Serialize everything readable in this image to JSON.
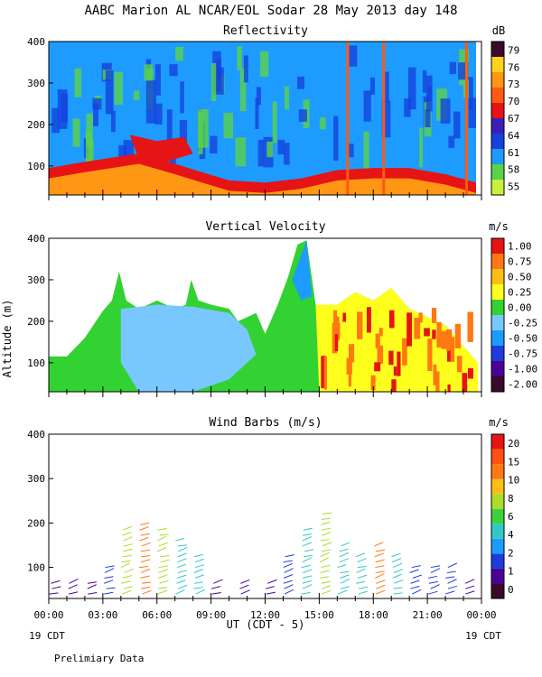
{
  "header": {
    "title": "AABC Marion AL NCAR/EOL Sodar  28 May 2013 day 148"
  },
  "footer": {
    "x_axis_label": "UT  (CDT - 5)",
    "left_date": "19 CDT",
    "right_date": "19 CDT",
    "note": "Prelimiary Data"
  },
  "colors": {
    "reflectivity_scale": [
      "#c8f03c",
      "#5ad24a",
      "#1e9bff",
      "#1444dc",
      "#3c1eb4",
      "#e61414",
      "#ff5a14",
      "#ff9614",
      "#ffd21e",
      "#3a0a28"
    ],
    "velocity_scale": [
      "#3a0a28",
      "#4b0096",
      "#1e3cdc",
      "#1e9bff",
      "#78c8ff",
      "#32d232",
      "#ffff1e",
      "#ffbe14",
      "#ff7814",
      "#e61414"
    ],
    "wind_scale": [
      "#3a0a28",
      "#4b0096",
      "#1e3cdc",
      "#1e9bff",
      "#32c8c8",
      "#3cd23c",
      "#aadc28",
      "#ffbe14",
      "#ff7814",
      "#ff5014",
      "#e61414"
    ]
  },
  "chart_data": [
    {
      "type": "heatmap",
      "title": "Reflectivity",
      "colorbar_unit": "dB",
      "colorbar_ticks": [
        "55",
        "58",
        "61",
        "64",
        "67",
        "70",
        "73",
        "76",
        "79"
      ],
      "x_ticks": [
        "00:00",
        "03:00",
        "06:00",
        "09:00",
        "12:00",
        "15:00",
        "18:00",
        "21:00",
        "00:00"
      ],
      "y_ticks": [
        "100",
        "200",
        "300",
        "400"
      ],
      "ylim": [
        30,
        400
      ],
      "xlim_hours": [
        0,
        24
      ],
      "surface_layer": [
        {
          "x": 0,
          "y": 95
        },
        {
          "x": 2,
          "y": 110
        },
        {
          "x": 3.5,
          "y": 120
        },
        {
          "x": 5,
          "y": 130
        },
        {
          "x": 7,
          "y": 105
        },
        {
          "x": 8.5,
          "y": 85
        },
        {
          "x": 10,
          "y": 65
        },
        {
          "x": 12,
          "y": 60
        },
        {
          "x": 14,
          "y": 70
        },
        {
          "x": 16,
          "y": 90
        },
        {
          "x": 18,
          "y": 95
        },
        {
          "x": 20,
          "y": 95
        },
        {
          "x": 22,
          "y": 80
        },
        {
          "x": 23.7,
          "y": 60
        }
      ],
      "high_echo_region": [
        {
          "x": 4.5,
          "y": 175
        },
        {
          "x": 6,
          "y": 160
        },
        {
          "x": 7.5,
          "y": 170
        },
        {
          "x": 8,
          "y": 130
        },
        {
          "x": 6.5,
          "y": 110
        },
        {
          "x": 5,
          "y": 115
        }
      ]
    },
    {
      "type": "heatmap",
      "title": "Vertical Velocity",
      "ylabel": "Altitude (m)",
      "colorbar_unit": "m/s",
      "colorbar_ticks": [
        "-2.00",
        "-1.00",
        "-0.75",
        "-0.50",
        "-0.25",
        "0.00",
        "0.25",
        "0.50",
        "0.75",
        "1.00"
      ],
      "x_ticks": [
        "00:00",
        "03:00",
        "06:00",
        "09:00",
        "12:00",
        "15:00",
        "18:00",
        "21:00",
        "00:00"
      ],
      "y_ticks": [
        "100",
        "200",
        "300",
        "400"
      ],
      "ylim": [
        30,
        400
      ],
      "xlim_hours": [
        0,
        24
      ],
      "data_top_boundary": [
        {
          "x": 0,
          "y": 115
        },
        {
          "x": 1,
          "y": 115
        },
        {
          "x": 2,
          "y": 160
        },
        {
          "x": 3,
          "y": 225
        },
        {
          "x": 3.5,
          "y": 250
        },
        {
          "x": 3.9,
          "y": 320
        },
        {
          "x": 4.3,
          "y": 250
        },
        {
          "x": 5,
          "y": 230
        },
        {
          "x": 6,
          "y": 250
        },
        {
          "x": 7,
          "y": 230
        },
        {
          "x": 7.6,
          "y": 240
        },
        {
          "x": 7.9,
          "y": 300
        },
        {
          "x": 8.3,
          "y": 250
        },
        {
          "x": 9,
          "y": 240
        },
        {
          "x": 10,
          "y": 230
        },
        {
          "x": 10.5,
          "y": 200
        },
        {
          "x": 11.5,
          "y": 220
        },
        {
          "x": 12,
          "y": 170
        },
        {
          "x": 12.7,
          "y": 240
        },
        {
          "x": 13.3,
          "y": 310
        },
        {
          "x": 13.8,
          "y": 385
        },
        {
          "x": 14.3,
          "y": 395
        },
        {
          "x": 14.8,
          "y": 240
        },
        {
          "x": 16,
          "y": 240
        },
        {
          "x": 17,
          "y": 270
        },
        {
          "x": 18,
          "y": 250
        },
        {
          "x": 19,
          "y": 280
        },
        {
          "x": 20,
          "y": 230
        },
        {
          "x": 21,
          "y": 210
        },
        {
          "x": 22,
          "y": 190
        },
        {
          "x": 23,
          "y": 140
        },
        {
          "x": 23.8,
          "y": 100
        },
        {
          "x": 23.8,
          "y": 30
        }
      ],
      "updraft_region": [
        {
          "x": 14.8,
          "y": 240
        },
        {
          "x": 16,
          "y": 240
        },
        {
          "x": 17,
          "y": 270
        },
        {
          "x": 18,
          "y": 250
        },
        {
          "x": 19,
          "y": 280
        },
        {
          "x": 20,
          "y": 230
        },
        {
          "x": 21,
          "y": 210
        },
        {
          "x": 22,
          "y": 190
        },
        {
          "x": 23,
          "y": 140
        },
        {
          "x": 23.8,
          "y": 100
        },
        {
          "x": 23.8,
          "y": 30
        },
        {
          "x": 15,
          "y": 30
        }
      ],
      "downdraft_region": [
        {
          "x": 4,
          "y": 230
        },
        {
          "x": 6,
          "y": 240
        },
        {
          "x": 8,
          "y": 235
        },
        {
          "x": 10,
          "y": 220
        },
        {
          "x": 11,
          "y": 180
        },
        {
          "x": 11.5,
          "y": 120
        },
        {
          "x": 10,
          "y": 60
        },
        {
          "x": 8,
          "y": 30
        },
        {
          "x": 5,
          "y": 30
        },
        {
          "x": 4,
          "y": 100
        }
      ]
    },
    {
      "type": "scatter",
      "title": "Wind Barbs (m/s)",
      "colorbar_unit": "m/s",
      "colorbar_ticks": [
        "0",
        "1",
        "2",
        "4",
        "6",
        "8",
        "10",
        "15",
        "20"
      ],
      "x_ticks": [
        "00:00",
        "03:00",
        "06:00",
        "09:00",
        "12:00",
        "15:00",
        "18:00",
        "21:00",
        "00:00"
      ],
      "y_ticks": [
        "100",
        "200",
        "300",
        "400"
      ],
      "ylim": [
        30,
        400
      ],
      "xlim_hours": [
        0,
        24
      ],
      "barb_coverage_top": [
        {
          "x": 0,
          "y": 90
        },
        {
          "x": 2,
          "y": 95
        },
        {
          "x": 3,
          "y": 110
        },
        {
          "x": 3.5,
          "y": 180
        },
        {
          "x": 4,
          "y": 240
        },
        {
          "x": 6,
          "y": 230
        },
        {
          "x": 8,
          "y": 230
        },
        {
          "x": 8.7,
          "y": 200
        },
        {
          "x": 9,
          "y": 80
        },
        {
          "x": 11,
          "y": 80
        },
        {
          "x": 12,
          "y": 80
        },
        {
          "x": 12.7,
          "y": 140
        },
        {
          "x": 13.5,
          "y": 200
        },
        {
          "x": 14.5,
          "y": 280
        },
        {
          "x": 15.5,
          "y": 190
        },
        {
          "x": 17,
          "y": 180
        },
        {
          "x": 18,
          "y": 200
        },
        {
          "x": 19,
          "y": 190
        },
        {
          "x": 21,
          "y": 160
        },
        {
          "x": 22,
          "y": 200
        },
        {
          "x": 23.5,
          "y": 90
        }
      ],
      "barb_speed_profile": [
        {
          "x": 0,
          "y": 60,
          "speed": 1
        },
        {
          "x": 1,
          "y": 60,
          "speed": 1
        },
        {
          "x": 2,
          "y": 60,
          "speed": 1
        },
        {
          "x": 3,
          "y": 100,
          "speed": 2
        },
        {
          "x": 4,
          "y": 180,
          "speed": 6
        },
        {
          "x": 5,
          "y": 200,
          "speed": 8
        },
        {
          "x": 6,
          "y": 180,
          "speed": 6
        },
        {
          "x": 7,
          "y": 160,
          "speed": 4
        },
        {
          "x": 8,
          "y": 120,
          "speed": 4
        },
        {
          "x": 9,
          "y": 60,
          "speed": 1
        },
        {
          "x": 10.5,
          "y": 60,
          "speed": 1
        },
        {
          "x": 12,
          "y": 60,
          "speed": 1
        },
        {
          "x": 13,
          "y": 120,
          "speed": 2
        },
        {
          "x": 14,
          "y": 180,
          "speed": 4
        },
        {
          "x": 15,
          "y": 220,
          "speed": 6
        },
        {
          "x": 16,
          "y": 150,
          "speed": 4
        },
        {
          "x": 17,
          "y": 120,
          "speed": 4
        },
        {
          "x": 18,
          "y": 150,
          "speed": 8
        },
        {
          "x": 19,
          "y": 120,
          "speed": 4
        },
        {
          "x": 20,
          "y": 100,
          "speed": 2
        },
        {
          "x": 21,
          "y": 100,
          "speed": 2
        },
        {
          "x": 22,
          "y": 100,
          "speed": 2
        },
        {
          "x": 23,
          "y": 60,
          "speed": 1
        }
      ]
    }
  ]
}
